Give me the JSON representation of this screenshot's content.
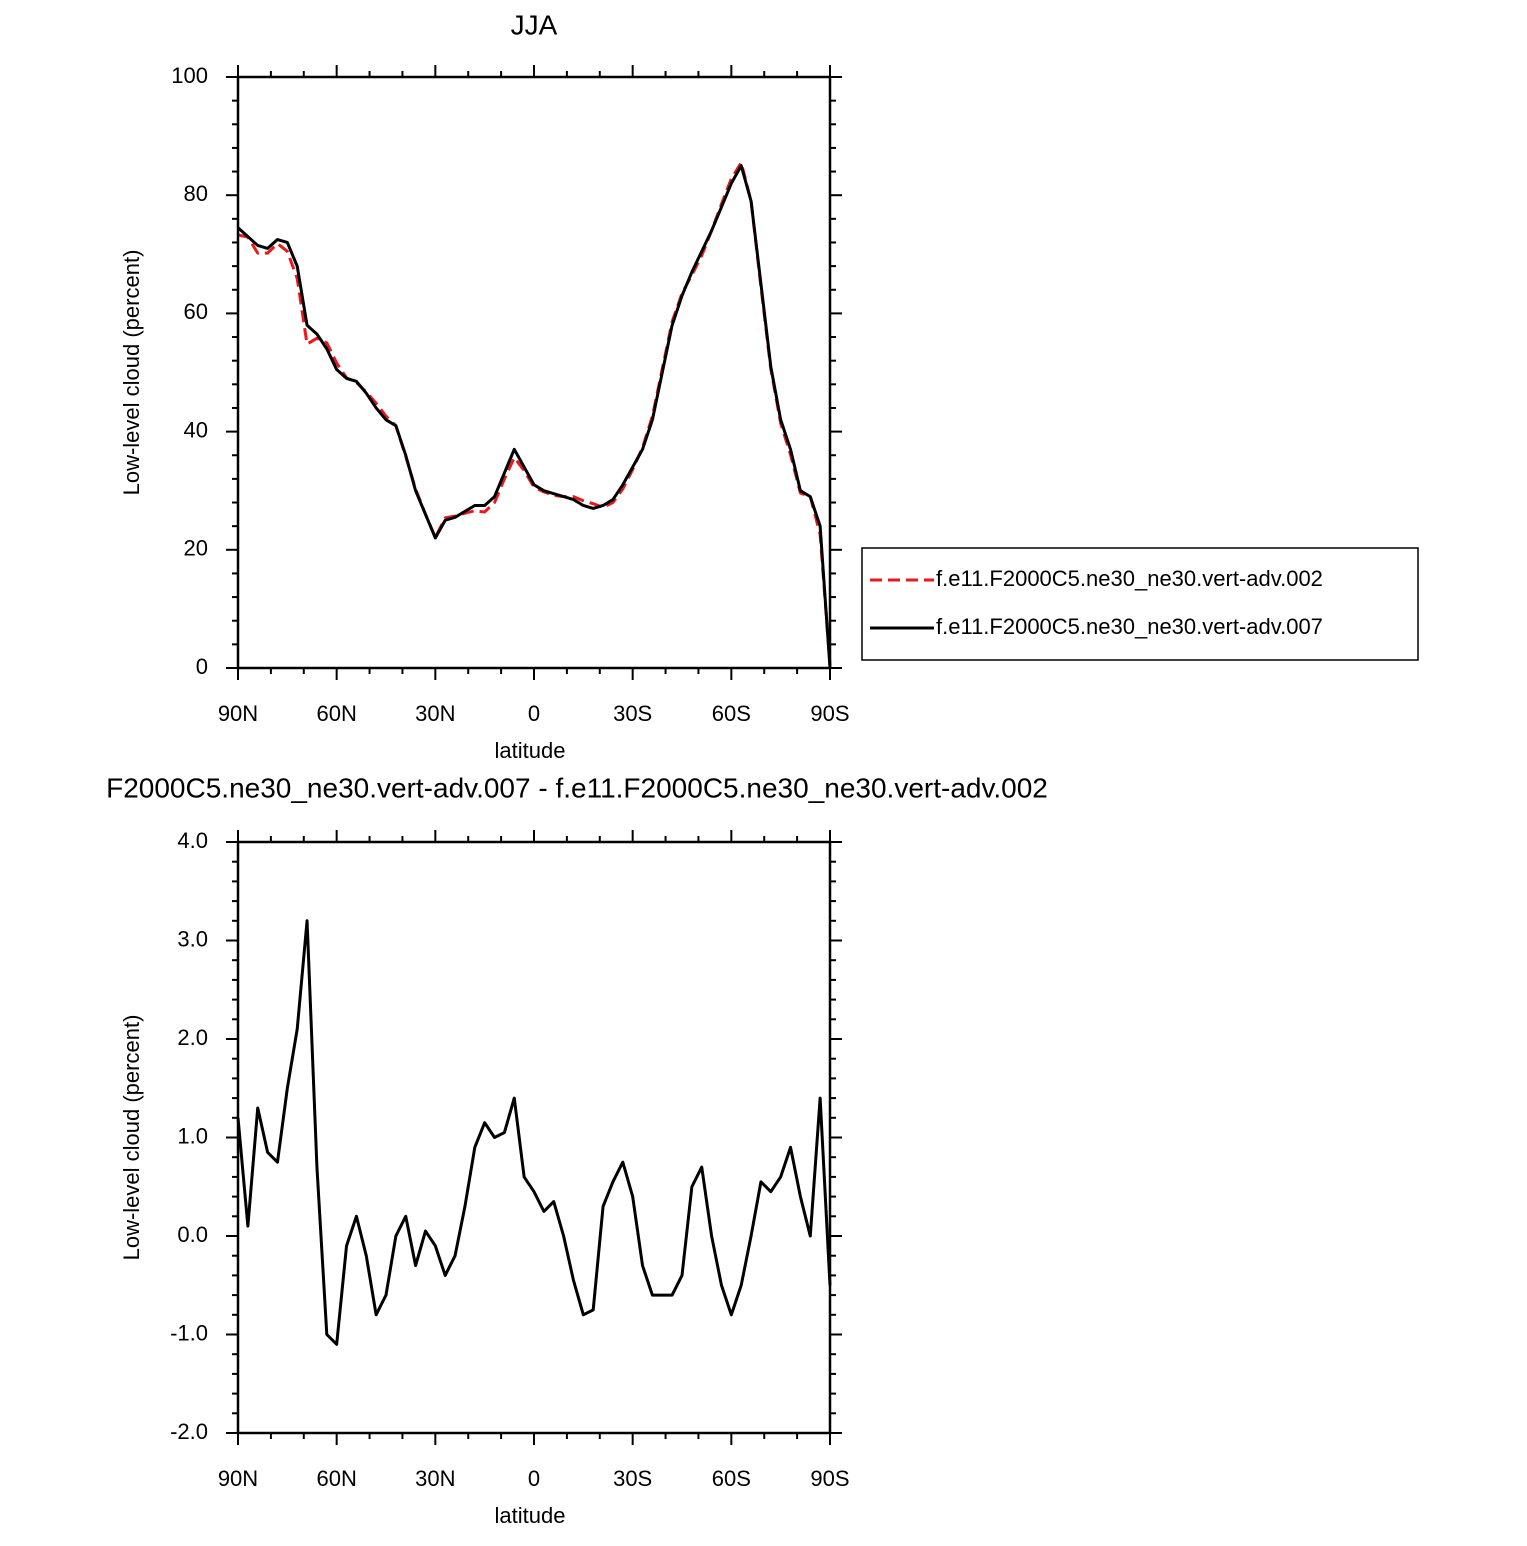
{
  "chart_data": [
    {
      "type": "line",
      "title": "JJA",
      "ylabel": "Low-level cloud (percent)",
      "xlabel": "latitude",
      "x": [
        90,
        87,
        84,
        81,
        78,
        75,
        72,
        69,
        66,
        63,
        60,
        57,
        54,
        51,
        48,
        45,
        42,
        39,
        36,
        33,
        30,
        27,
        24,
        21,
        18,
        15,
        12,
        9,
        6,
        3,
        0,
        -3,
        -6,
        -9,
        -12,
        -15,
        -18,
        -21,
        -24,
        -27,
        -30,
        -33,
        -36,
        -39,
        -42,
        -45,
        -48,
        -51,
        -54,
        -57,
        -60,
        -63,
        -66,
        -69,
        -72,
        -75,
        -78,
        -81,
        -84,
        -87,
        -90
      ],
      "xlim": [
        90,
        -90
      ],
      "xticks": [
        {
          "value": 90,
          "label": "90N"
        },
        {
          "value": 60,
          "label": "60N"
        },
        {
          "value": 30,
          "label": "30N"
        },
        0,
        {
          "value": -30,
          "label": "30S"
        },
        {
          "value": -60,
          "label": "60S"
        },
        {
          "value": -90,
          "label": "90S"
        }
      ],
      "ylim": [
        0,
        100
      ],
      "yticks": [
        0,
        20,
        40,
        60,
        80,
        100
      ],
      "series": [
        {
          "name": "f.e11.F2000C5.ne30_ne30.vert-adv.002",
          "color": "#e8191c",
          "style": "dashed",
          "values": [
            73.3,
            72.9,
            70.2,
            70.2,
            71.8,
            70.5,
            65.9,
            54.8,
            55.8,
            55.0,
            51.6,
            49.1,
            48.3,
            46.7,
            44.8,
            42.6,
            41.0,
            35.8,
            30.3,
            26.0,
            22.1,
            25.4,
            25.7,
            26.2,
            26.6,
            26.4,
            28.0,
            32.0,
            35.6,
            33.4,
            30.6,
            29.8,
            29.2,
            29.0,
            29.0,
            28.3,
            27.8,
            27.2,
            28.0,
            30.3,
            33.6,
            37.3,
            42.6,
            50.6,
            58.6,
            63.4,
            66.5,
            69.8,
            74.0,
            78.5,
            82.8,
            85.5,
            79.0,
            64.5,
            50.6,
            41.4,
            36.1,
            29.6,
            29.0,
            22.6,
            0.5
          ]
        },
        {
          "name": "f.e11.F2000C5.ne30_ne30.vert-adv.007",
          "color": "#000000",
          "style": "solid",
          "values": [
            74.5,
            73.0,
            71.5,
            71.0,
            72.5,
            72.0,
            68.0,
            58.0,
            56.5,
            54.0,
            50.5,
            49.0,
            48.5,
            46.5,
            44.0,
            42.0,
            41.0,
            36.0,
            30.0,
            26.0,
            22.0,
            25.0,
            25.5,
            26.5,
            27.5,
            27.5,
            29.0,
            33.0,
            37.0,
            34.0,
            31.0,
            30.0,
            29.5,
            29.0,
            28.5,
            27.5,
            27.0,
            27.5,
            28.5,
            31.0,
            34.0,
            37.0,
            42.0,
            50.0,
            58.0,
            63.0,
            67.0,
            70.5,
            74.0,
            78.0,
            82.0,
            85.0,
            79.0,
            65.0,
            51.0,
            42.0,
            37.0,
            30.0,
            29.0,
            24.0,
            0.0
          ]
        }
      ]
    },
    {
      "type": "line",
      "title": "F2000C5.ne30_ne30.vert-adv.007 - f.e11.F2000C5.ne30_ne30.vert-adv.002",
      "ylabel": "Low-level cloud (percent)",
      "xlabel": "latitude",
      "x": [
        90,
        87,
        84,
        81,
        78,
        75,
        72,
        69,
        66,
        63,
        60,
        57,
        54,
        51,
        48,
        45,
        42,
        39,
        36,
        33,
        30,
        27,
        24,
        21,
        18,
        15,
        12,
        9,
        6,
        3,
        0,
        -3,
        -6,
        -9,
        -12,
        -15,
        -18,
        -21,
        -24,
        -27,
        -30,
        -33,
        -36,
        -39,
        -42,
        -45,
        -48,
        -51,
        -54,
        -57,
        -60,
        -63,
        -66,
        -69,
        -72,
        -75,
        -78,
        -81,
        -84,
        -87,
        -90
      ],
      "xlim": [
        90,
        -90
      ],
      "xticks": [
        {
          "value": 90,
          "label": "90N"
        },
        {
          "value": 60,
          "label": "60N"
        },
        {
          "value": 30,
          "label": "30N"
        },
        0,
        {
          "value": -30,
          "label": "30S"
        },
        {
          "value": -60,
          "label": "60S"
        },
        {
          "value": -90,
          "label": "90S"
        }
      ],
      "ylim": [
        -2,
        4
      ],
      "yticks": [
        {
          "value": -2,
          "label": "-2.0"
        },
        {
          "value": -1,
          "label": "-1.0"
        },
        {
          "value": 0,
          "label": "0.0"
        },
        {
          "value": 1,
          "label": "1.0"
        },
        {
          "value": 2,
          "label": "2.0"
        },
        {
          "value": 3,
          "label": "3.0"
        },
        {
          "value": 4,
          "label": "4.0"
        }
      ],
      "series": [
        {
          "color": "#000000",
          "style": "solid",
          "values": [
            1.2,
            0.1,
            1.3,
            0.85,
            0.75,
            1.5,
            2.1,
            3.2,
            0.7,
            -1.0,
            -1.1,
            -0.1,
            0.2,
            -0.2,
            -0.8,
            -0.6,
            0.0,
            0.2,
            -0.3,
            0.05,
            -0.1,
            -0.4,
            -0.2,
            0.3,
            0.9,
            1.15,
            1.0,
            1.05,
            1.4,
            0.6,
            0.45,
            0.25,
            0.35,
            0.0,
            -0.45,
            -0.8,
            -0.75,
            0.3,
            0.55,
            0.75,
            0.4,
            -0.3,
            -0.6,
            -0.6,
            -0.6,
            -0.4,
            0.5,
            0.7,
            0.0,
            -0.5,
            -0.8,
            -0.5,
            0.0,
            0.55,
            0.45,
            0.6,
            0.9,
            0.4,
            0.0,
            1.4,
            -0.5
          ]
        }
      ]
    }
  ]
}
